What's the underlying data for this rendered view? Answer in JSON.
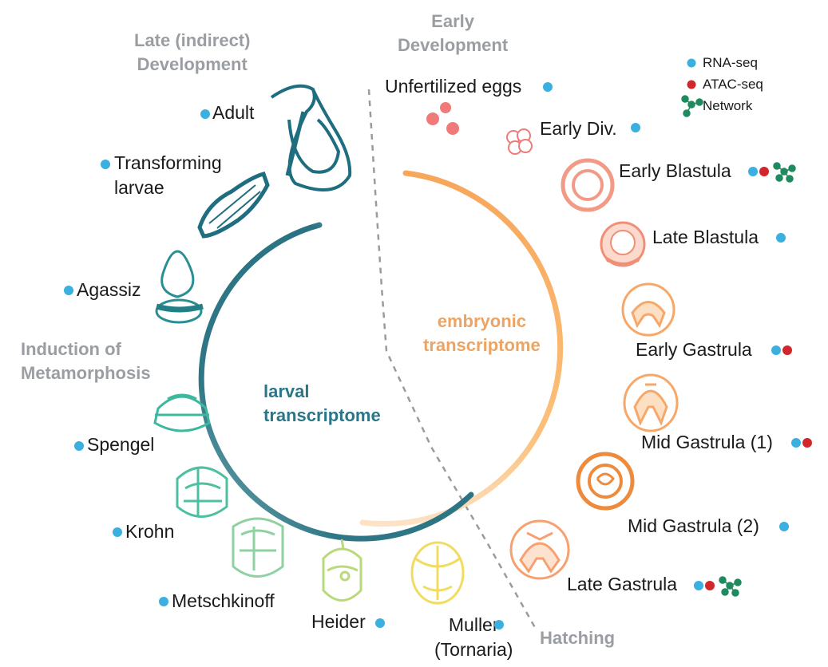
{
  "colors": {
    "rna": "#3bb0e0",
    "atac": "#d1262b",
    "network": "#1e8a5e",
    "phase_text": "#9a9ea3",
    "embryonic": "#f4a85c",
    "larval": "#2e7d8c"
  },
  "legend": {
    "rna": "RNA-seq",
    "atac": "ATAC-seq",
    "network": "Network"
  },
  "phases": {
    "early_dev": "Early\nDevelopment",
    "late_dev": "Late (indirect)\nDevelopment",
    "induction": "Induction of\nMetamorphosis",
    "hatching": "Hatching"
  },
  "transcriptomes": {
    "embryonic": "embryonic\ntranscriptome",
    "larval": "larval\ntranscriptome"
  },
  "stages": {
    "unfertilized": {
      "label": "Unfertilized eggs",
      "data": [
        "rna"
      ]
    },
    "early_div": {
      "label": "Early Div.",
      "data": [
        "rna"
      ]
    },
    "early_blastula": {
      "label": "Early Blastula",
      "data": [
        "rna",
        "atac",
        "network"
      ]
    },
    "late_blastula": {
      "label": "Late Blastula",
      "data": [
        "rna"
      ]
    },
    "early_gastrula": {
      "label": "Early Gastrula",
      "data": [
        "rna",
        "atac"
      ]
    },
    "mid_gastrula_1": {
      "label": "Mid Gastrula (1)",
      "data": [
        "rna",
        "atac"
      ]
    },
    "mid_gastrula_2": {
      "label": "Mid Gastrula (2)",
      "data": [
        "rna"
      ]
    },
    "late_gastrula": {
      "label": "Late Gastrula",
      "data": [
        "rna",
        "atac",
        "network"
      ]
    },
    "muller": {
      "label": "Muller\n(Tornaria)",
      "data": [
        "rna"
      ]
    },
    "heider": {
      "label": "Heider",
      "data": [
        "rna"
      ]
    },
    "metschkinoff": {
      "label": "Metschkinoff",
      "data": [
        "rna"
      ]
    },
    "krohn": {
      "label": "Krohn",
      "data": [
        "rna"
      ]
    },
    "spengel": {
      "label": "Spengel",
      "data": [
        "rna"
      ]
    },
    "agassiz": {
      "label": "Agassiz",
      "data": [
        "rna"
      ]
    },
    "transforming": {
      "label": "Transforming\nlarvae",
      "data": [
        "rna"
      ]
    },
    "adult": {
      "label": "Adult",
      "data": [
        "rna"
      ]
    }
  }
}
